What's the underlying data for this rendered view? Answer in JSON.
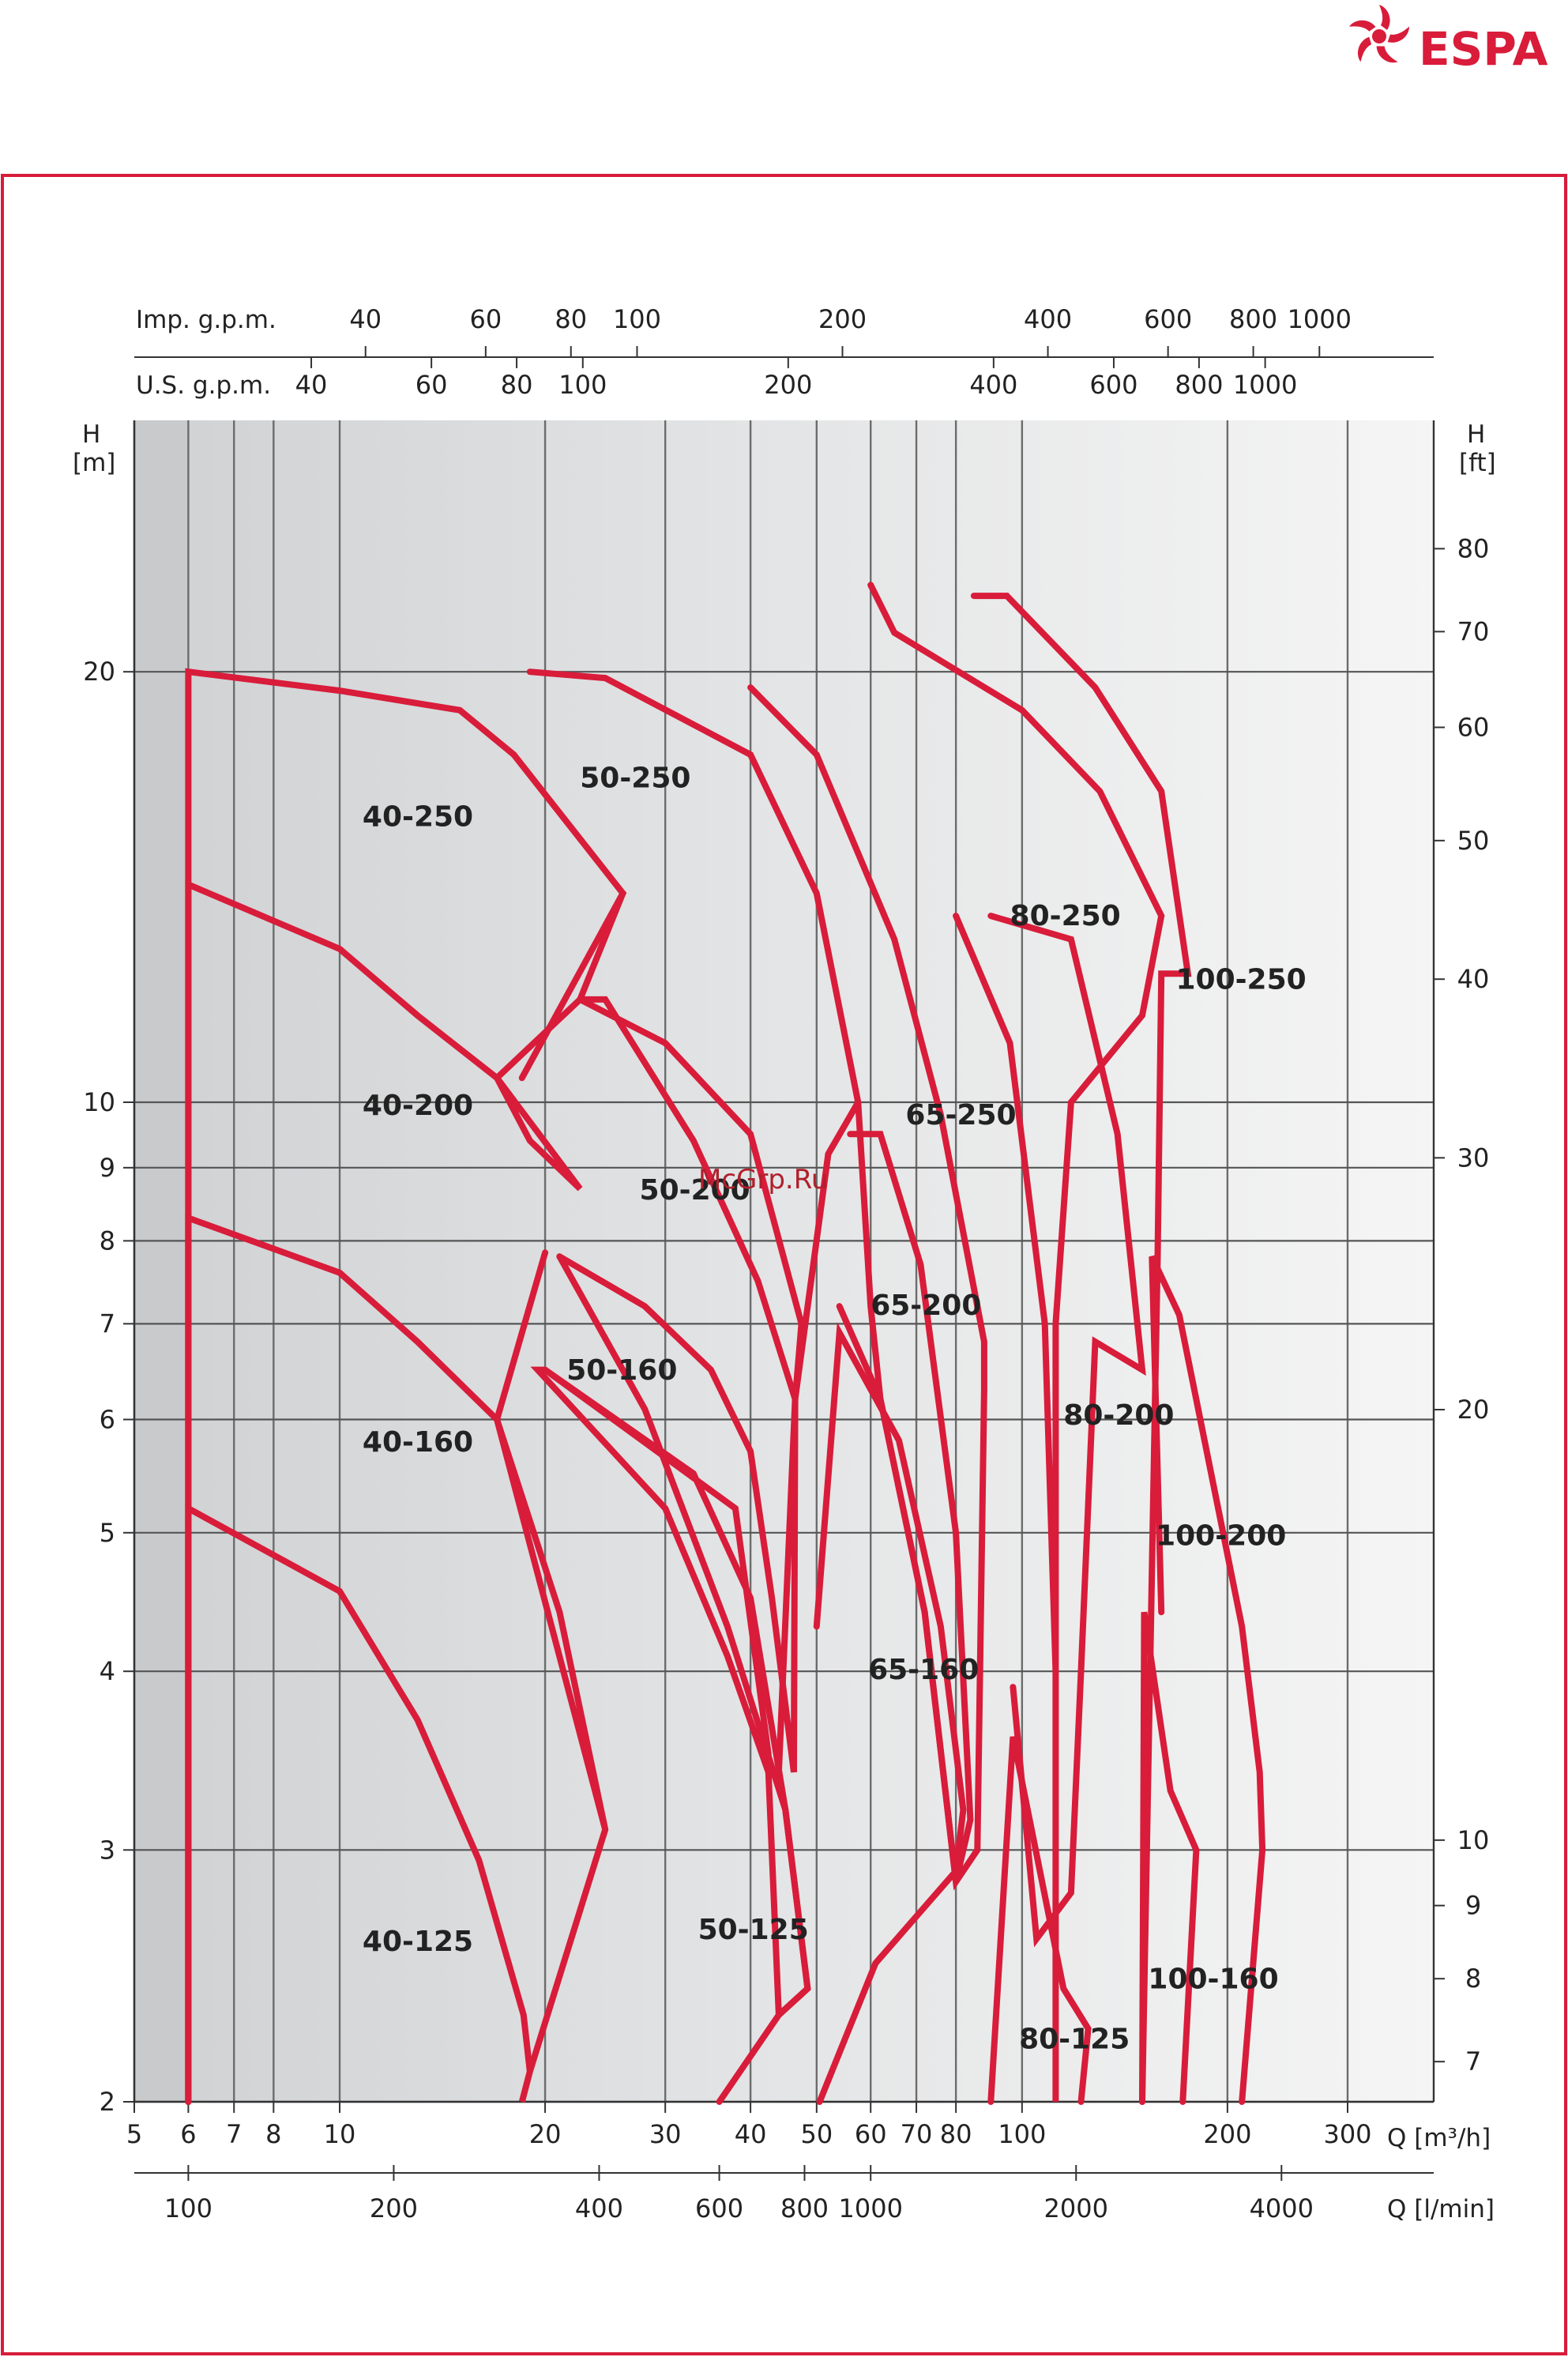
{
  "brand": {
    "name": "ESPA"
  },
  "watermark": "McGrp.Ru",
  "chart_data": {
    "type": "line",
    "title": "",
    "xlabel": "Q [m³/h]",
    "xlabel_secondary": "Q [l/min]",
    "ylabel": "H\n[m]",
    "ylabel_right": "H\n[ft]",
    "xscale": "log",
    "yscale": "log",
    "xlim": [
      5,
      400
    ],
    "ylim": [
      2,
      30
    ],
    "top_axis_imp_label": "Imp. g.p.m.",
    "top_axis_us_label": "U.S. g.p.m.",
    "x_ticks": [
      "5",
      "6",
      "7",
      "8",
      "10",
      "20",
      "30",
      "40",
      "50",
      "60",
      "70",
      "80",
      "100",
      "200",
      "300"
    ],
    "x_tick_values": [
      5,
      6,
      7,
      8,
      10,
      20,
      30,
      40,
      50,
      60,
      70,
      80,
      100,
      200,
      300
    ],
    "lmin_ticks": [
      "100",
      "200",
      "400",
      "600",
      "800",
      "1000",
      "2000",
      "4000"
    ],
    "lmin_tick_values": [
      100,
      200,
      400,
      600,
      800,
      1000,
      2000,
      4000
    ],
    "imp_gpm_ticks": [
      "40",
      "60",
      "80",
      "100",
      "200",
      "400",
      "600",
      "800",
      "1000"
    ],
    "imp_gpm_tick_values": [
      40,
      60,
      80,
      100,
      200,
      400,
      600,
      800,
      1000
    ],
    "us_gpm_ticks": [
      "40",
      "60",
      "80",
      "100",
      "200",
      "400",
      "600",
      "800",
      "1000"
    ],
    "us_gpm_tick_values": [
      40,
      60,
      80,
      100,
      200,
      400,
      600,
      800,
      1000
    ],
    "y_ticks": [
      "2",
      "3",
      "4",
      "5",
      "6",
      "7",
      "8",
      "9",
      "10",
      "20"
    ],
    "y_tick_values": [
      2,
      3,
      4,
      5,
      6,
      7,
      8,
      9,
      10,
      20
    ],
    "ft_ticks": [
      "7",
      "8",
      "9",
      "10",
      "20",
      "30",
      "40",
      "50",
      "60",
      "70",
      "80"
    ],
    "ft_tick_values": [
      7,
      8,
      9,
      10,
      20,
      30,
      40,
      50,
      60,
      70,
      80
    ],
    "grid": true,
    "series": [
      {
        "name": "40-125",
        "label_at": [
          10.8,
          2.55
        ],
        "points": [
          [
            6,
            2.0
          ],
          [
            6,
            5.2
          ],
          [
            10,
            4.55
          ],
          [
            13,
            3.7
          ],
          [
            16,
            2.95
          ],
          [
            18.6,
            2.3
          ],
          [
            19,
            2.1
          ],
          [
            18.5,
            2.0
          ],
          [
            19,
            2.1
          ],
          [
            24.5,
            3.1
          ]
        ]
      },
      {
        "name": "40-160",
        "label_at": [
          10.8,
          5.7
        ],
        "points": [
          [
            6,
            2.0
          ],
          [
            6,
            8.3
          ],
          [
            10,
            7.6
          ],
          [
            13,
            6.8
          ],
          [
            17,
            6.0
          ],
          [
            21,
            4.4
          ],
          [
            24.5,
            3.1
          ],
          [
            17,
            6.0
          ],
          [
            20,
            7.85
          ]
        ]
      },
      {
        "name": "40-200",
        "label_at": [
          10.8,
          9.8
        ],
        "points": [
          [
            6,
            2.0
          ],
          [
            6,
            14.2
          ],
          [
            10,
            12.8
          ],
          [
            13,
            11.5
          ],
          [
            17,
            10.4
          ],
          [
            22.5,
            8.7
          ],
          [
            19,
            9.4
          ],
          [
            17,
            10.4
          ],
          [
            22.5,
            11.8
          ]
        ]
      },
      {
        "name": "40-250",
        "label_at": [
          10.8,
          15.6
        ],
        "points": [
          [
            6,
            2.0
          ],
          [
            6,
            20.0
          ],
          [
            10,
            19.4
          ],
          [
            15,
            18.8
          ],
          [
            18,
            17.5
          ],
          [
            26,
            14.0
          ],
          [
            18.5,
            10.4
          ]
        ]
      },
      {
        "name": "50-125",
        "label_at": [
          33.5,
          2.6
        ],
        "points": [
          [
            36,
            2.0
          ],
          [
            44,
            2.3
          ],
          [
            48.5,
            2.4
          ],
          [
            48.5,
            2.4
          ],
          [
            45,
            3.2
          ],
          [
            40,
            4.5
          ],
          [
            33,
            5.5
          ],
          [
            20,
            6.5
          ],
          [
            38,
            5.2
          ],
          [
            42.5,
            3.5
          ]
        ]
      },
      {
        "name": "50-160",
        "label_at": [
          21.5,
          6.4
        ],
        "points": [
          [
            20,
            6.5
          ],
          [
            19.5,
            6.5
          ],
          [
            30,
            5.2
          ],
          [
            37,
            4.1
          ],
          [
            42.5,
            3.4
          ],
          [
            44,
            2.3
          ],
          [
            48.5,
            2.4
          ],
          [
            45,
            3.2
          ],
          [
            37,
            4.3
          ],
          [
            28,
            6.1
          ],
          [
            21,
            7.8
          ]
        ]
      },
      {
        "name": "50-200",
        "label_at": [
          27.5,
          8.55
        ],
        "points": [
          [
            21,
            7.8
          ],
          [
            28,
            7.2
          ],
          [
            35,
            6.5
          ],
          [
            40,
            5.7
          ],
          [
            43,
            4.5
          ],
          [
            46.3,
            3.4
          ],
          [
            46.5,
            6.2
          ],
          [
            41,
            7.5
          ],
          [
            33,
            9.4
          ],
          [
            24.5,
            11.8
          ],
          [
            22.5,
            11.8
          ]
        ]
      },
      {
        "name": "50-250",
        "label_at": [
          22.5,
          16.6
        ],
        "points": [
          [
            26,
            14.0
          ],
          [
            22.5,
            11.8
          ],
          [
            30,
            11.0
          ],
          [
            40,
            9.5
          ],
          [
            47.5,
            7.0
          ],
          [
            46.5,
            6.2
          ],
          [
            44,
            3.4
          ],
          [
            46.5,
            6.2
          ],
          [
            52,
            9.2
          ],
          [
            57.5,
            10.0
          ],
          [
            50,
            14.0
          ],
          [
            40,
            17.5
          ],
          [
            24.5,
            19.8
          ],
          [
            19,
            20.0
          ]
        ]
      },
      {
        "name": "65-160",
        "label_at": [
          59.5,
          3.95
        ],
        "points": [
          [
            50.5,
            2.0
          ],
          [
            61,
            2.5
          ],
          [
            80,
            2.9
          ],
          [
            82,
            3.2
          ],
          [
            76,
            4.3
          ],
          [
            66,
            5.8
          ],
          [
            54,
            6.9
          ],
          [
            50,
            4.3
          ]
        ]
      },
      {
        "name": "65-200",
        "label_at": [
          60,
          7.1
        ],
        "points": [
          [
            54,
            7.2
          ],
          [
            62,
            6.2
          ],
          [
            72,
            4.4
          ],
          [
            80,
            2.85
          ],
          [
            84,
            3.15
          ],
          [
            80,
            5.0
          ],
          [
            71,
            7.7
          ],
          [
            62,
            9.5
          ],
          [
            56,
            9.5
          ]
        ]
      },
      {
        "name": "65-250",
        "label_at": [
          67.5,
          9.65
        ],
        "points": [
          [
            57.5,
            10.0
          ],
          [
            60,
            7.2
          ],
          [
            62,
            6.2
          ],
          [
            72,
            4.4
          ],
          [
            80,
            2.85
          ],
          [
            86,
            3.0
          ],
          [
            88,
            6.3
          ],
          [
            88,
            6.8
          ],
          [
            76,
            9.8
          ],
          [
            65,
            13.0
          ],
          [
            50,
            17.5
          ],
          [
            40,
            19.5
          ],
          [
            40,
            19.5
          ]
        ]
      },
      {
        "name": "80-125",
        "label_at": [
          99,
          2.18
        ],
        "points": [
          [
            90,
            2.0
          ],
          [
            97,
            3.6
          ],
          [
            115,
            2.4
          ],
          [
            125,
            2.25
          ],
          [
            122,
            2.0
          ]
        ]
      },
      {
        "name": "80-200",
        "label_at": [
          115,
          5.95
        ],
        "points": [
          [
            97,
            3.9
          ],
          [
            105,
            2.6
          ],
          [
            118,
            2.8
          ],
          [
            122,
            4.0
          ],
          [
            128,
            6.8
          ],
          [
            150,
            6.5
          ],
          [
            138,
            9.5
          ],
          [
            118,
            13.0
          ],
          [
            90,
            13.5
          ]
        ]
      },
      {
        "name": "80-250",
        "label_at": [
          96,
          13.3
        ],
        "points": [
          [
            80,
            13.5
          ],
          [
            96,
            11.0
          ],
          [
            108,
            7.0
          ],
          [
            112,
            4.0
          ],
          [
            112,
            2.0
          ],
          [
            112,
            7.0
          ],
          [
            118,
            10.0
          ],
          [
            150,
            11.5
          ],
          [
            160,
            13.5
          ],
          [
            130,
            16.5
          ],
          [
            100,
            18.8
          ],
          [
            65,
            21.3
          ],
          [
            60,
            23.0
          ]
        ]
      },
      {
        "name": "100-160",
        "label_at": [
          153,
          2.4
        ],
        "points": [
          [
            150,
            2.0
          ],
          [
            151,
            4.4
          ],
          [
            165,
            3.3
          ],
          [
            180,
            3.0
          ],
          [
            172,
            2.0
          ]
        ]
      },
      {
        "name": "100-200",
        "label_at": [
          157,
          4.9
        ],
        "points": [
          [
            160,
            4.4
          ],
          [
            155,
            7.8
          ],
          [
            170,
            7.1
          ],
          [
            210,
            4.3
          ],
          [
            223,
            3.4
          ],
          [
            225,
            3.0
          ],
          [
            210,
            2.0
          ]
        ]
      },
      {
        "name": "100-250",
        "label_at": [
          168,
          12.0
        ],
        "points": [
          [
            150,
            2.0
          ],
          [
            158,
            7.8
          ],
          [
            160,
            12.3
          ],
          [
            175,
            12.3
          ],
          [
            160,
            16.5
          ],
          [
            128,
            19.5
          ],
          [
            95,
            22.6
          ],
          [
            85,
            22.6
          ]
        ]
      }
    ]
  }
}
